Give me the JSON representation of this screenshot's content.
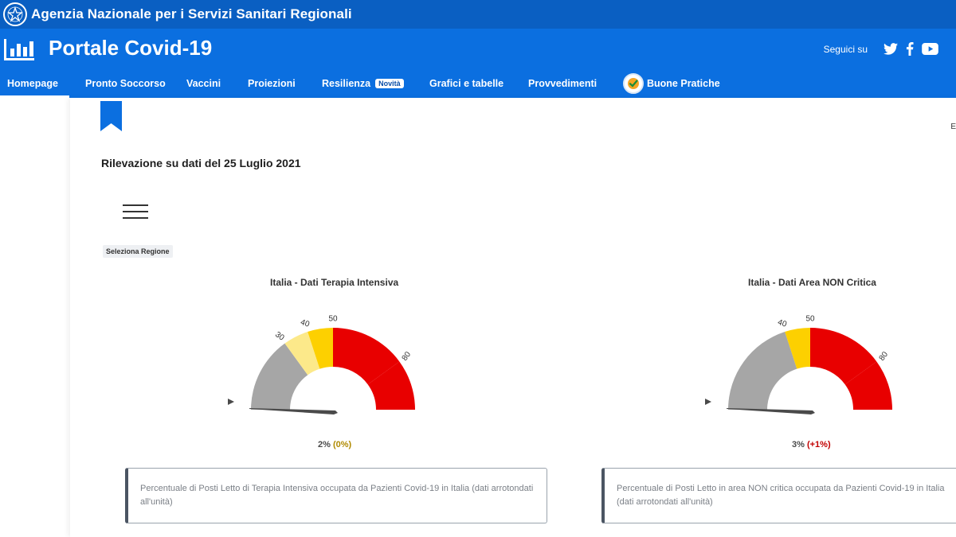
{
  "gov_bar": {
    "title": "Agenzia Nazionale per i Servizi Sanitari Regionali",
    "emblem_icon": "italian-republic-emblem-icon"
  },
  "header": {
    "title": "Portale Covid-19",
    "logo_icon": "bar-chart-icon",
    "social_label": "Seguici su",
    "social_icons": [
      "twitter-icon",
      "facebook-icon",
      "youtube-icon"
    ]
  },
  "nav": {
    "items": [
      {
        "label": "Homepage"
      },
      {
        "label": "Pronto Soccorso"
      },
      {
        "label": "Vaccini"
      },
      {
        "label": "Proiezioni"
      },
      {
        "label": "Resilienza",
        "badge": "Novità"
      },
      {
        "label": "Grafici e tabelle"
      },
      {
        "label": "Provvedimenti"
      },
      {
        "label": "Buone Pratiche",
        "icon": "check-badge-icon"
      }
    ],
    "active": "Homepage"
  },
  "content": {
    "edge_letter": "E",
    "survey_date": "Rilevazione su dati del 25 Luglio 2021",
    "region_select": "Seleziona Regione",
    "menu_icon": "hamburger-menu-icon"
  },
  "colors": {
    "gov_bar": "#0a5fc2",
    "header": "#0b6fe0",
    "gauge_gray": "#a6a6a6",
    "gauge_light_yellow": "#fce98a",
    "gauge_yellow": "#fdd000",
    "gauge_red": "#e80000",
    "needle": "#4a4a4a",
    "change_neutral": "#b08a00",
    "change_up": "#c20000"
  },
  "gauges": [
    {
      "title": "Italia - Dati Terapia Intensiva",
      "value_text": "2%",
      "change_text": "(0%)",
      "value": 2,
      "bands": [
        {
          "from": 0,
          "to": 30,
          "color": "gray"
        },
        {
          "from": 30,
          "to": 40,
          "color": "light_yellow"
        },
        {
          "from": 40,
          "to": 50,
          "color": "yellow"
        },
        {
          "from": 50,
          "to": 80,
          "color": "red"
        },
        {
          "from": 80,
          "to": 100,
          "color": "red"
        }
      ],
      "tick_labels": [
        "30",
        "40",
        "50",
        "80"
      ],
      "description": "Percentuale di Posti Letto di Terapia Intensiva occupata da Pazienti Covid-19 in Italia (dati arrotondati all'unità)"
    },
    {
      "title": "Italia - Dati Area NON Critica",
      "value_text": "3%",
      "change_text": "(+1%)",
      "value": 3,
      "bands": [
        {
          "from": 0,
          "to": 40,
          "color": "gray"
        },
        {
          "from": 40,
          "to": 50,
          "color": "yellow"
        },
        {
          "from": 50,
          "to": 80,
          "color": "red"
        },
        {
          "from": 80,
          "to": 100,
          "color": "red"
        }
      ],
      "tick_labels": [
        "40",
        "50",
        "80"
      ],
      "description": "Percentuale di Posti Letto in area NON critica occupata da Pazienti Covid-19 in Italia (dati arrotondati all'unità)"
    }
  ]
}
